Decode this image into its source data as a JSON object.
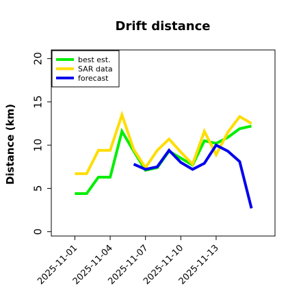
{
  "chart_data": {
    "type": "line",
    "title": "Drift distance",
    "xlabel": "",
    "ylabel": "Distance (km)",
    "x_ticks": [
      "2025-11-01",
      "2025-11-04",
      "2025-11-07",
      "2025-11-10",
      "2025-11-13"
    ],
    "x_tick_values": [
      0,
      3,
      6,
      9,
      12
    ],
    "xlim": [
      -2,
      17
    ],
    "ylim": [
      -0.5,
      21
    ],
    "y_ticks": [
      0,
      5,
      10,
      15,
      20
    ],
    "grid": false,
    "legend": "top-left",
    "series": [
      {
        "name": "best est.",
        "color": "#00ee00",
        "x": [
          0,
          1,
          2,
          3,
          4,
          5,
          6,
          7,
          8,
          9,
          10,
          11,
          12,
          13,
          14,
          15
        ],
        "values": [
          4.4,
          4.4,
          6.3,
          6.3,
          11.6,
          9.3,
          7.1,
          7.4,
          9.3,
          8.5,
          7.7,
          10.5,
          10.2,
          10.9,
          11.9,
          12.2
        ]
      },
      {
        "name": "SAR data",
        "color": "#ffdd00",
        "x": [
          0,
          1,
          2,
          3,
          4,
          5,
          6,
          7,
          8,
          9,
          10,
          11,
          12,
          13,
          14,
          15
        ],
        "values": [
          6.7,
          6.7,
          9.4,
          9.4,
          13.5,
          9.5,
          7.4,
          9.4,
          10.7,
          9.2,
          7.8,
          11.6,
          8.9,
          11.5,
          13.3,
          12.5
        ]
      },
      {
        "name": "forecast",
        "color": "#0000ee",
        "x": [
          5,
          6,
          7,
          8,
          9,
          10,
          11,
          12,
          13,
          14,
          15
        ],
        "values": [
          7.8,
          7.2,
          7.5,
          9.4,
          8.0,
          7.2,
          7.9,
          10.0,
          9.3,
          8.1,
          2.7
        ]
      }
    ]
  }
}
